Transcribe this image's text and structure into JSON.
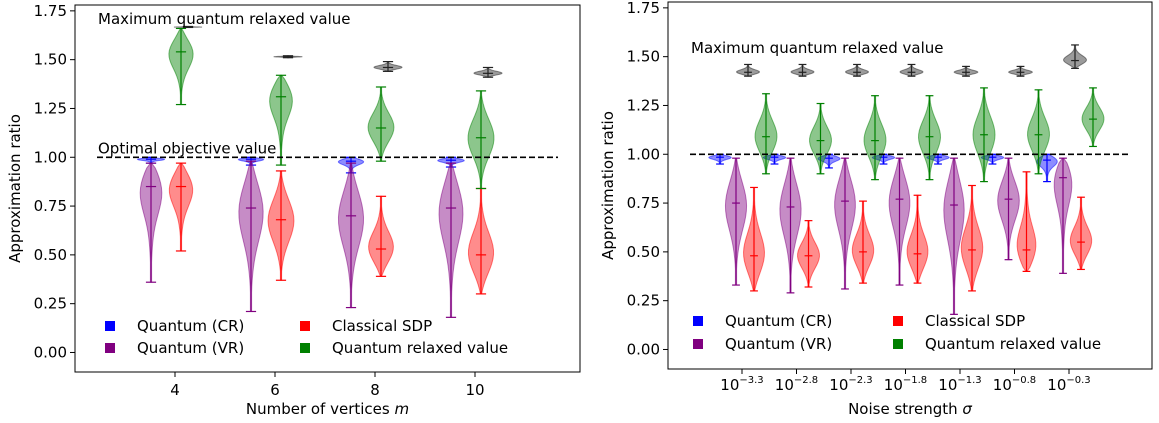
{
  "chart_data": [
    {
      "type": "violin",
      "xlabel": "Number of vertices",
      "xlabel_italic": "m",
      "ylabel": "Approximation ratio",
      "ylim": [
        -0.1,
        1.78
      ],
      "yticks": [
        "0.00",
        "0.25",
        "0.50",
        "0.75",
        "1.00",
        "1.25",
        "1.50",
        "1.75"
      ],
      "ytick_values": [
        0,
        0.25,
        0.5,
        0.75,
        1.0,
        1.25,
        1.5,
        1.75
      ],
      "categories": [
        "4",
        "6",
        "8",
        "10"
      ],
      "reference_line": {
        "value": 1.0,
        "label": "Optimal objective value",
        "style": "dashed"
      },
      "max_label": "Maximum quantum relaxed value",
      "series": [
        {
          "name": "Quantum (CR)",
          "color": "#0000ff",
          "violins": [
            {
              "min": 0.97,
              "max": 1.0,
              "median": 0.99
            },
            {
              "min": 0.96,
              "max": 1.0,
              "median": 0.99
            },
            {
              "min": 0.92,
              "max": 1.0,
              "median": 0.98
            },
            {
              "min": 0.95,
              "max": 1.0,
              "median": 0.985
            }
          ]
        },
        {
          "name": "Quantum (VR)",
          "color": "#800080",
          "violins": [
            {
              "min": 0.36,
              "max": 0.97,
              "median": 0.85
            },
            {
              "min": 0.21,
              "max": 0.98,
              "median": 0.74
            },
            {
              "min": 0.23,
              "max": 0.97,
              "median": 0.7
            },
            {
              "min": 0.18,
              "max": 0.97,
              "median": 0.74
            }
          ]
        },
        {
          "name": "Classical SDP",
          "color": "#ff0000",
          "violins": [
            {
              "min": 0.52,
              "max": 0.97,
              "median": 0.85
            },
            {
              "min": 0.37,
              "max": 0.93,
              "median": 0.68
            },
            {
              "min": 0.39,
              "max": 0.8,
              "median": 0.53
            },
            {
              "min": 0.3,
              "max": 0.84,
              "median": 0.5
            }
          ]
        },
        {
          "name": "Quantum relaxed value",
          "color": "#008000",
          "violins": [
            {
              "min": 1.27,
              "max": 1.66,
              "median": 1.54
            },
            {
              "min": 0.96,
              "max": 1.42,
              "median": 1.31
            },
            {
              "min": 0.98,
              "max": 1.36,
              "median": 1.15
            },
            {
              "min": 0.84,
              "max": 1.34,
              "median": 1.1
            }
          ]
        },
        {
          "name": "Maximum quantum relaxed value",
          "color": "#222222",
          "in_legend": false,
          "violins": [
            {
              "min": 1.665,
              "max": 1.67,
              "median": 1.667
            },
            {
              "min": 1.51,
              "max": 1.52,
              "median": 1.515
            },
            {
              "min": 1.44,
              "max": 1.49,
              "median": 1.46
            },
            {
              "min": 1.41,
              "max": 1.46,
              "median": 1.43
            }
          ]
        }
      ],
      "legend": {
        "placement": "bottom",
        "entries": [
          "Quantum (CR)",
          "Classical SDP",
          "Quantum (VR)",
          "Quantum relaxed value"
        ]
      }
    },
    {
      "type": "violin",
      "xlabel": "Noise strength",
      "xlabel_italic": "σ",
      "ylabel": "Approximation ratio",
      "ylim": [
        -0.1,
        1.78
      ],
      "yticks": [
        "0.00",
        "0.25",
        "0.50",
        "0.75",
        "1.00",
        "1.25",
        "1.50",
        "1.75"
      ],
      "ytick_values": [
        0,
        0.25,
        0.5,
        0.75,
        1.0,
        1.25,
        1.5,
        1.75
      ],
      "categories": [
        {
          "base": "10",
          "exp": "−3.3"
        },
        {
          "base": "10",
          "exp": "−2.8"
        },
        {
          "base": "10",
          "exp": "−2.3"
        },
        {
          "base": "10",
          "exp": "−1.8"
        },
        {
          "base": "10",
          "exp": "−1.3"
        },
        {
          "base": "10",
          "exp": "−0.8"
        },
        {
          "base": "10",
          "exp": "−0.3"
        }
      ],
      "reference_line": {
        "value": 1.0,
        "style": "dashed"
      },
      "max_label": "Maximum quantum relaxed value",
      "series": [
        {
          "name": "Quantum (CR)",
          "color": "#0000ff",
          "violins": [
            {
              "min": 0.95,
              "max": 1.0,
              "median": 0.985
            },
            {
              "min": 0.95,
              "max": 1.0,
              "median": 0.985
            },
            {
              "min": 0.93,
              "max": 1.0,
              "median": 0.98
            },
            {
              "min": 0.95,
              "max": 1.0,
              "median": 0.985
            },
            {
              "min": 0.95,
              "max": 1.0,
              "median": 0.985
            },
            {
              "min": 0.95,
              "max": 1.0,
              "median": 0.985
            },
            {
              "min": 0.86,
              "max": 1.0,
              "median": 0.97
            }
          ]
        },
        {
          "name": "Quantum (VR)",
          "color": "#800080",
          "violins": [
            {
              "min": 0.33,
              "max": 0.98,
              "median": 0.75
            },
            {
              "min": 0.29,
              "max": 0.98,
              "median": 0.73
            },
            {
              "min": 0.31,
              "max": 0.98,
              "median": 0.76
            },
            {
              "min": 0.33,
              "max": 0.98,
              "median": 0.77
            },
            {
              "min": 0.18,
              "max": 0.98,
              "median": 0.74
            },
            {
              "min": 0.46,
              "max": 0.98,
              "median": 0.77
            },
            {
              "min": 0.39,
              "max": 0.98,
              "median": 0.88
            }
          ]
        },
        {
          "name": "Classical SDP",
          "color": "#ff0000",
          "violins": [
            {
              "min": 0.3,
              "max": 0.83,
              "median": 0.48
            },
            {
              "min": 0.32,
              "max": 0.66,
              "median": 0.48
            },
            {
              "min": 0.34,
              "max": 0.76,
              "median": 0.5
            },
            {
              "min": 0.34,
              "max": 0.79,
              "median": 0.49
            },
            {
              "min": 0.3,
              "max": 0.84,
              "median": 0.51
            },
            {
              "min": 0.4,
              "max": 0.91,
              "median": 0.51
            },
            {
              "min": 0.41,
              "max": 0.78,
              "median": 0.55
            }
          ]
        },
        {
          "name": "Quantum relaxed value",
          "color": "#008000",
          "violins": [
            {
              "min": 0.9,
              "max": 1.31,
              "median": 1.09
            },
            {
              "min": 0.9,
              "max": 1.26,
              "median": 1.07
            },
            {
              "min": 0.87,
              "max": 1.3,
              "median": 1.07
            },
            {
              "min": 0.87,
              "max": 1.3,
              "median": 1.09
            },
            {
              "min": 0.86,
              "max": 1.34,
              "median": 1.1
            },
            {
              "min": 0.9,
              "max": 1.33,
              "median": 1.1
            },
            {
              "min": 1.04,
              "max": 1.34,
              "median": 1.18
            }
          ]
        },
        {
          "name": "Maximum quantum relaxed value",
          "color": "#222222",
          "in_legend": false,
          "violins": [
            {
              "min": 1.4,
              "max": 1.46,
              "median": 1.42
            },
            {
              "min": 1.4,
              "max": 1.46,
              "median": 1.42
            },
            {
              "min": 1.4,
              "max": 1.46,
              "median": 1.42
            },
            {
              "min": 1.4,
              "max": 1.46,
              "median": 1.42
            },
            {
              "min": 1.4,
              "max": 1.45,
              "median": 1.42
            },
            {
              "min": 1.4,
              "max": 1.45,
              "median": 1.42
            },
            {
              "min": 1.44,
              "max": 1.56,
              "median": 1.48
            }
          ]
        }
      ],
      "legend": {
        "placement": "bottom",
        "entries": [
          "Quantum (CR)",
          "Classical SDP",
          "Quantum (VR)",
          "Quantum relaxed value"
        ]
      }
    }
  ]
}
